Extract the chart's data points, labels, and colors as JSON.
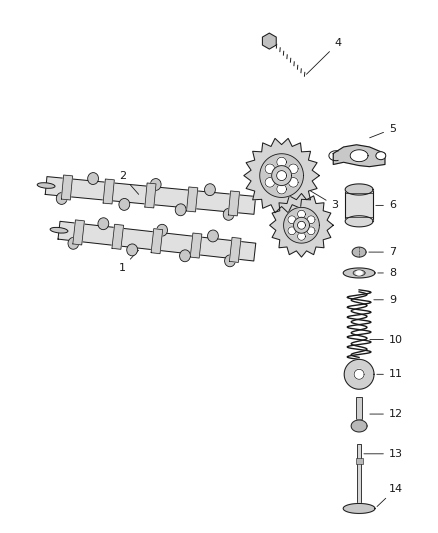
{
  "background_color": "#ffffff",
  "fig_width": 4.38,
  "fig_height": 5.33,
  "dpi": 100,
  "line_color": "#1a1a1a",
  "shaft_color": "#e8e8e8",
  "lobe_color": "#d0d0d0",
  "gear_color": "#d8d8d8",
  "part_fill": "#e0e0e0",
  "dark_fill": "#b0b0b0"
}
